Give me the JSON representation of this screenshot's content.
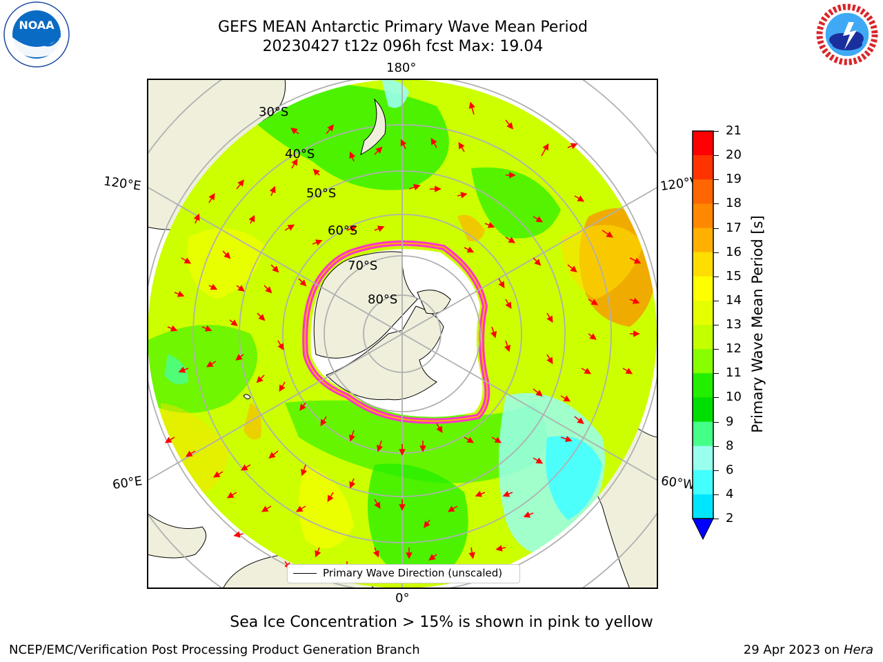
{
  "header": {
    "title_line1": "GEFS MEAN Antarctic Primary Wave Mean Period",
    "title_line2": "20230427 t12z 096h fcst   Max: 19.04"
  },
  "logos": {
    "noaa": "NOAA",
    "nws_ring": "NATIONAL WEATHER SERVICE"
  },
  "map": {
    "lon_labels": {
      "top": "180°",
      "bottom": "0°",
      "upper_left": "120°E",
      "upper_right": "120°W",
      "lower_left": "60°E",
      "lower_right": "60°W"
    },
    "lat_labels": [
      "30°S",
      "40°S",
      "50°S",
      "60°S",
      "70°S",
      "80°S"
    ],
    "legend_label": "Primary Wave Direction (unscaled)"
  },
  "colorbar": {
    "label": "Primary Wave Mean Period [s]",
    "ticks": [
      "21",
      "20",
      "19",
      "18",
      "17",
      "16",
      "15",
      "14",
      "13",
      "12",
      "11",
      "10",
      "9",
      "8",
      "6",
      "4",
      "2"
    ],
    "colors": [
      "#ff0000",
      "#ff3300",
      "#ff6600",
      "#ff8800",
      "#ffb000",
      "#ffdd00",
      "#ffff00",
      "#e6ff00",
      "#c4ff00",
      "#88ff00",
      "#22ee00",
      "#00dd00",
      "#44ff88",
      "#99ffee",
      "#44ffff",
      "#00e5ff",
      "#00aaff",
      "#0066ff"
    ],
    "extend_color": "#0000ff"
  },
  "caption": "Sea Ice Concentration > 15% is shown in pink to yellow",
  "footer": {
    "left": "NCEP/EMC/Verification Post Processing Product Generation Branch",
    "right_date": "29 Apr 2023 on ",
    "right_host": "Hera"
  }
}
